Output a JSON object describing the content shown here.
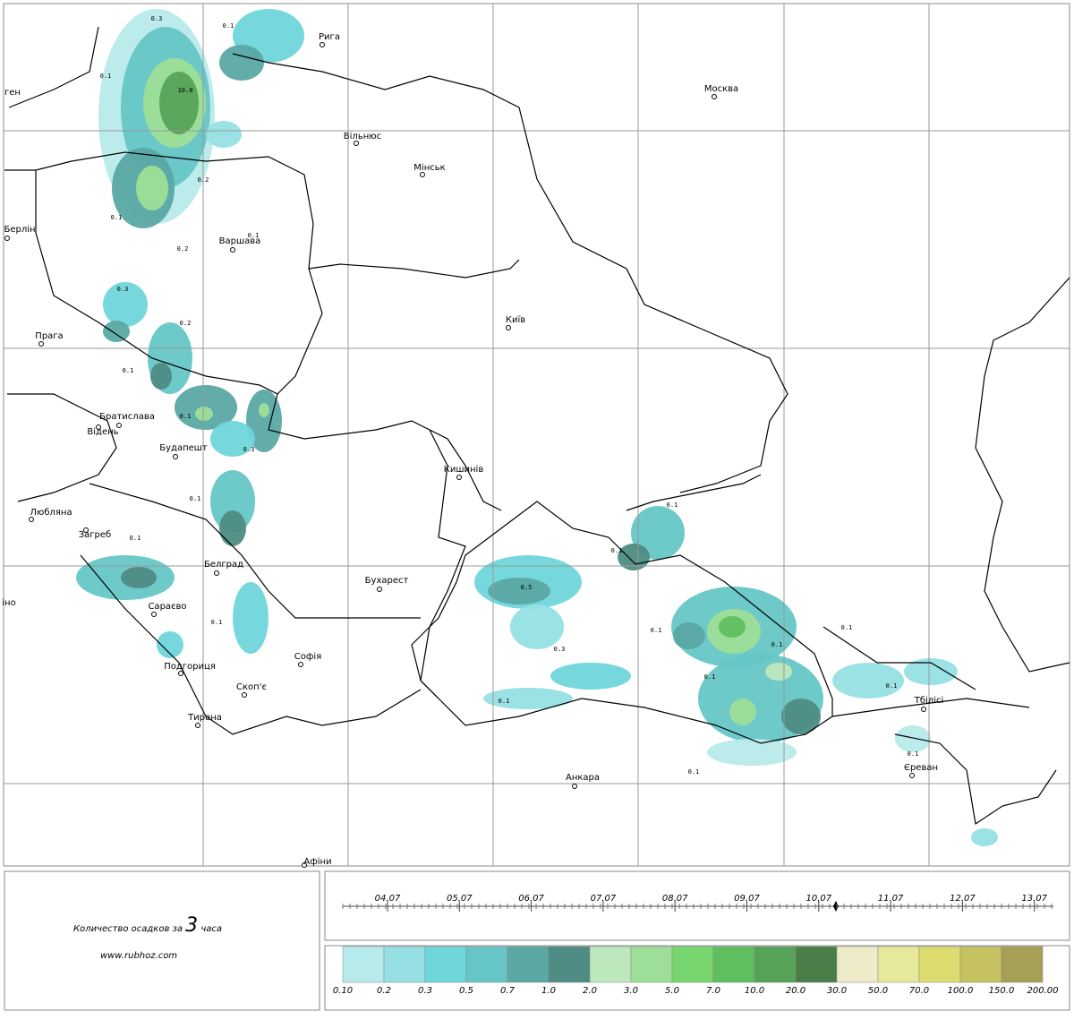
{
  "map": {
    "cities": [
      "Рига",
      "Москва",
      "Вільнюс",
      "Мінськ",
      "Берлін",
      "Варшава",
      "Прага",
      "Київ",
      "Братислава",
      "Відень",
      "Будапешт",
      "Кишинів",
      "Любляна",
      "Загреб",
      "Белград",
      "Бухарест",
      "Сараєво",
      "Софія",
      "Подгориця",
      "Скоп'є",
      "Тирана",
      "Тбілісі",
      "Єреван",
      "Анкара",
      "Афіни",
      "ген",
      "іно"
    ],
    "precip_labels": [
      "0.3",
      "0.1",
      "0.1",
      "10.0",
      "0.2",
      "0.1",
      "0.1",
      "0.2",
      "0.3",
      "0.2",
      "0.1",
      "0.1",
      "0.3",
      "0.1",
      "0.1",
      "0.1",
      "0.5",
      "0.3",
      "0.1",
      "0.1",
      "0.1",
      "0.1",
      "0.1",
      "0.1",
      "0.1",
      "0.1",
      "0.1",
      "0.1"
    ]
  },
  "caption": {
    "title_before": "Количество осадков за",
    "hours": "3",
    "title_after": "часа",
    "site": "www.rubhoz.com"
  },
  "timeline": {
    "dates": [
      "04.07",
      "05.07",
      "06.07",
      "07.07",
      "08.07",
      "09.07",
      "10.07",
      "11.07",
      "12.07",
      "13.07"
    ]
  },
  "legend": {
    "colors": [
      "#b7eaea",
      "#96e0e4",
      "#6fd6da",
      "#66c6c6",
      "#5aa8a4",
      "#4e8c84",
      "#bde8bd",
      "#9ddf98",
      "#78d66f",
      "#5fbf5f",
      "#56a256",
      "#4a7e48",
      "#eeecc8",
      "#e6e89a",
      "#dcdc6e",
      "#c6c260",
      "#a6a054"
    ],
    "values": [
      "0.10",
      "0.2",
      "0.3",
      "0.5",
      "0.7",
      "1.0",
      "2.0",
      "3.0",
      "5.0",
      "7.0",
      "10.0",
      "20.0",
      "30.0",
      "50.0",
      "70.0",
      "100.0",
      "150.0",
      "200.00"
    ]
  }
}
